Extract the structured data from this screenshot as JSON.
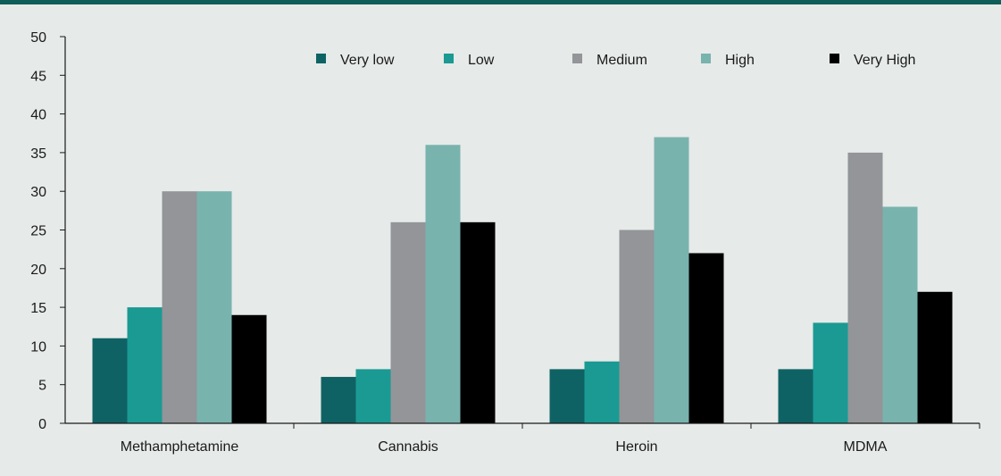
{
  "chart_data": {
    "type": "bar",
    "categories": [
      "Methamphetamine",
      "Cannabis",
      "Heroin",
      "MDMA"
    ],
    "series": [
      {
        "name": "Very low",
        "color": "#0f6264",
        "values": [
          11,
          6,
          7,
          7
        ]
      },
      {
        "name": "Low",
        "color": "#1a9a93",
        "values": [
          15,
          7,
          8,
          13
        ]
      },
      {
        "name": "Medium",
        "color": "#939598",
        "values": [
          30,
          26,
          25,
          35
        ]
      },
      {
        "name": "High",
        "color": "#79b3ae",
        "values": [
          30,
          36,
          37,
          28
        ]
      },
      {
        "name": "Very High",
        "color": "#000000",
        "values": [
          14,
          26,
          22,
          17
        ]
      }
    ],
    "ylim": [
      0,
      50
    ],
    "yticks": [
      0,
      5,
      10,
      15,
      20,
      25,
      30,
      35,
      40,
      45,
      50
    ],
    "legend_position": "top-right",
    "grid": false
  }
}
